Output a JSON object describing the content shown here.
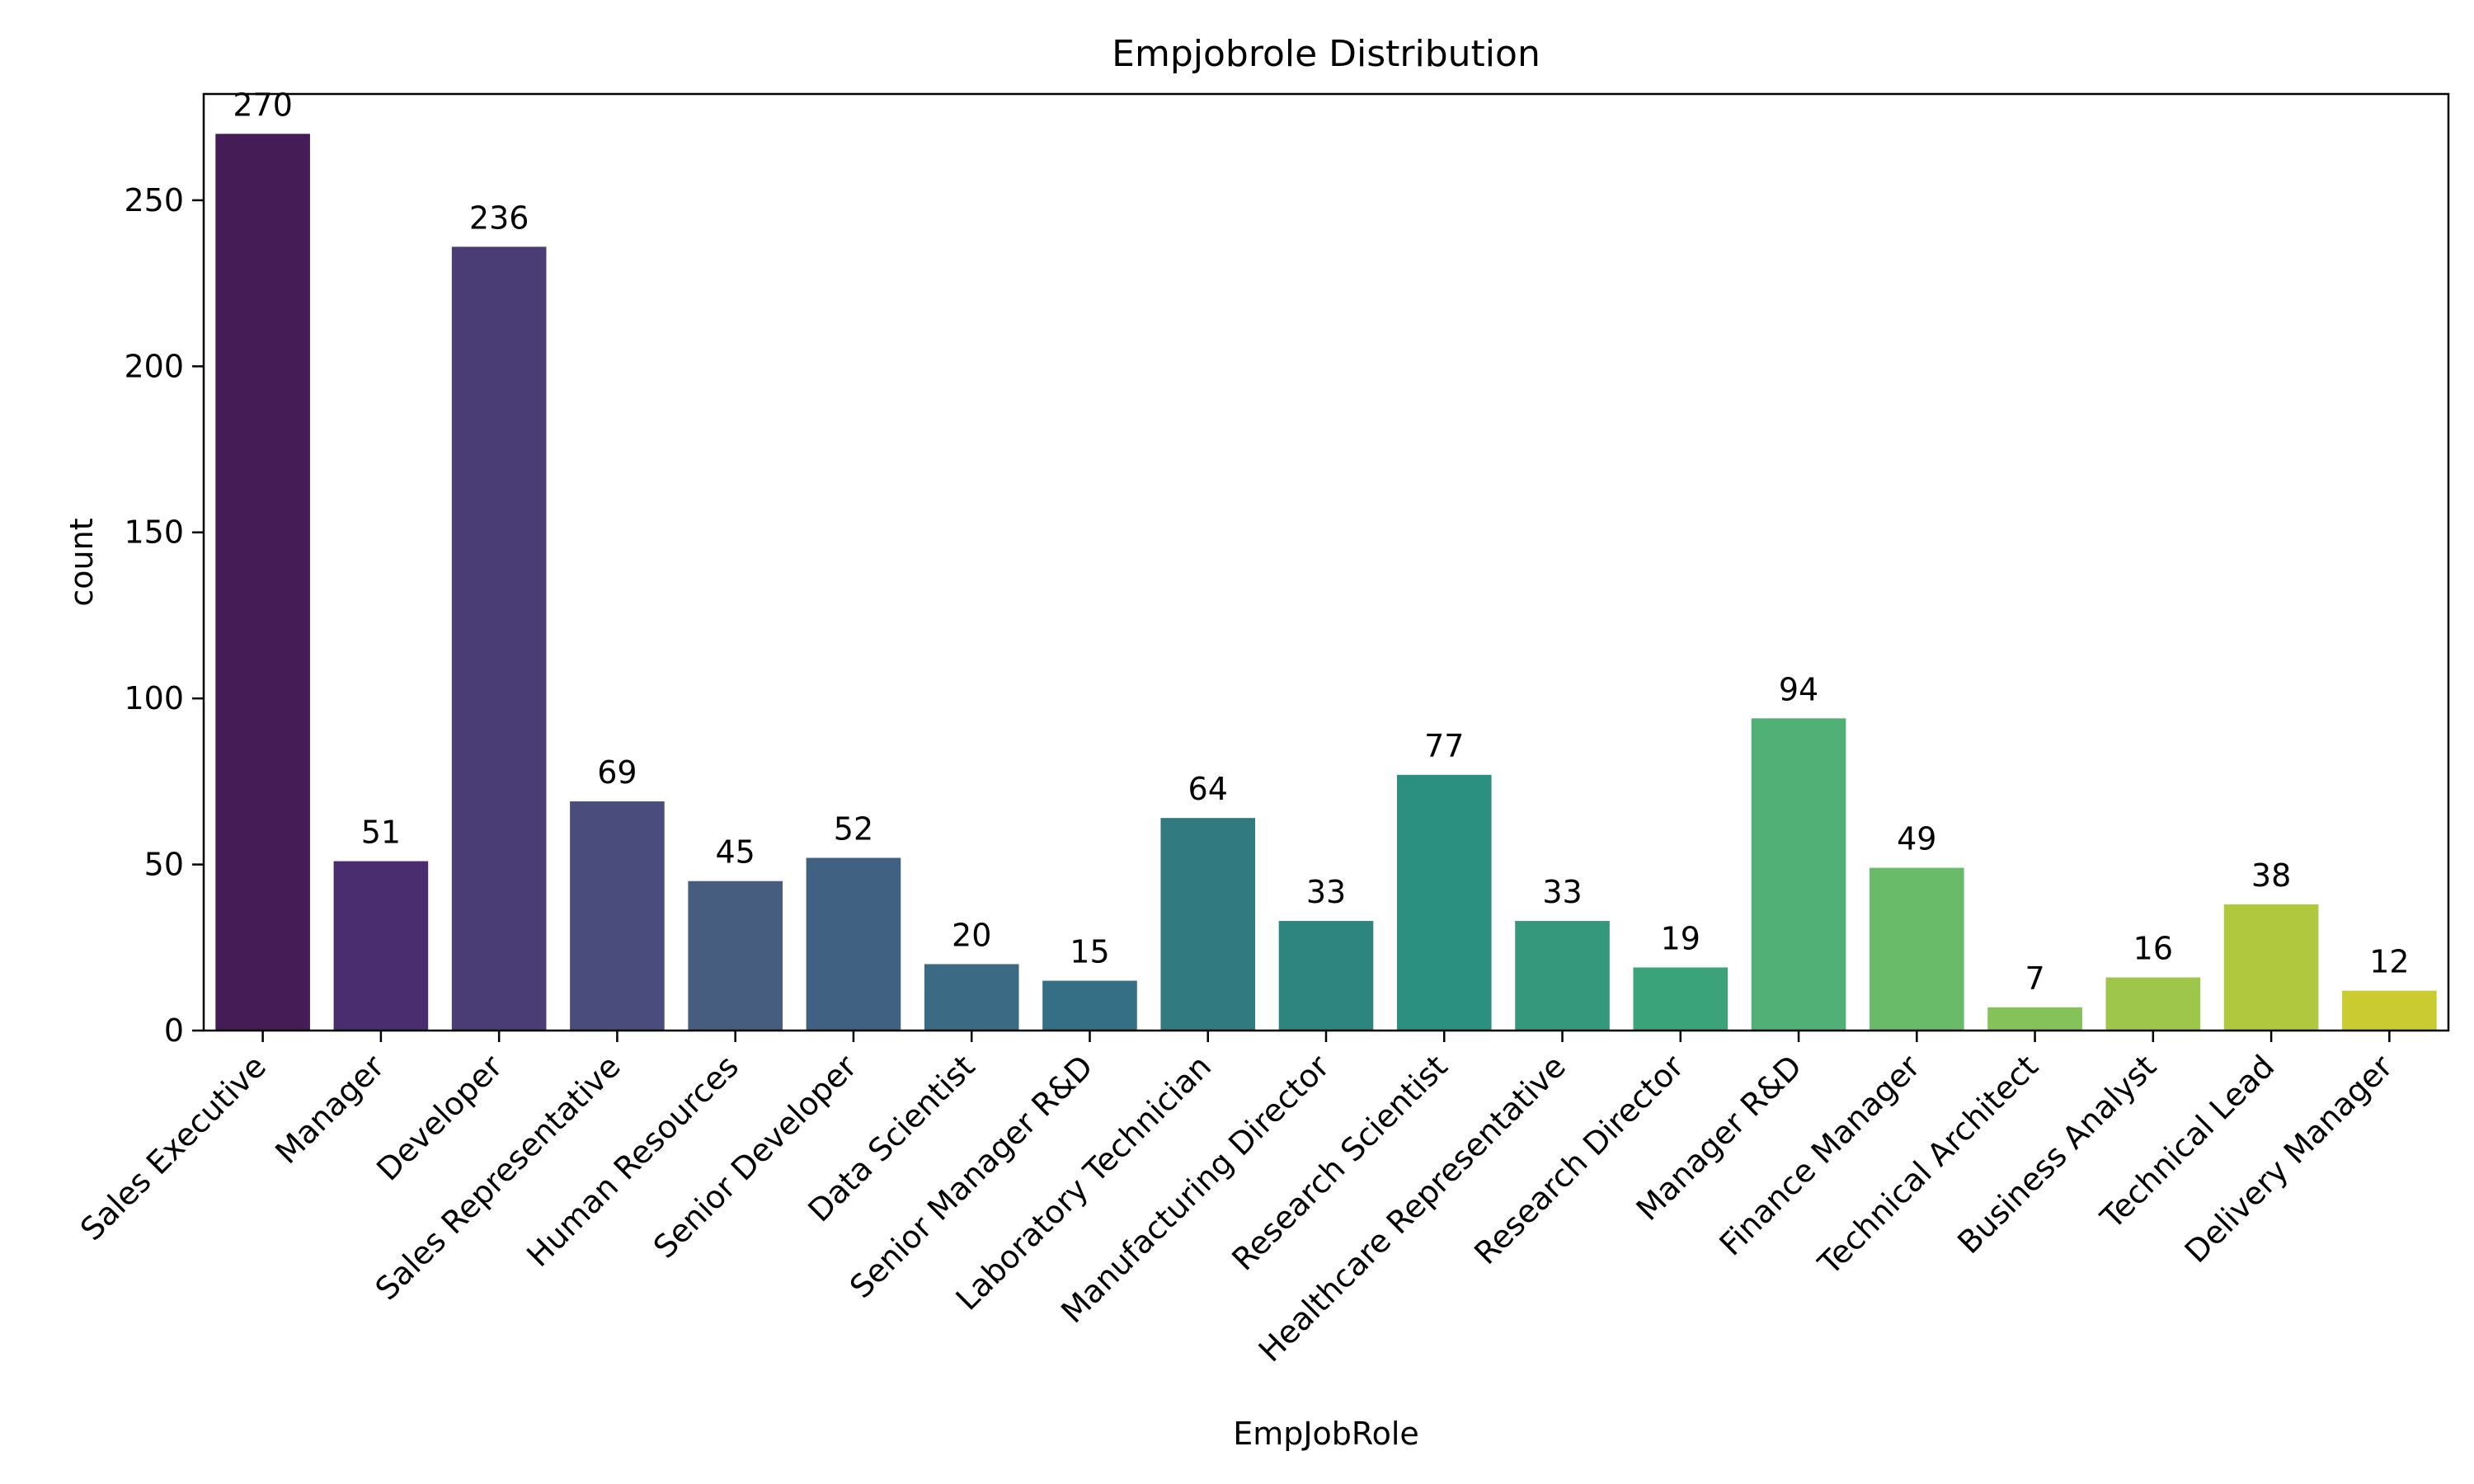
{
  "chart_data": {
    "type": "bar",
    "title": "Empjobrole Distribution",
    "xlabel": "EmpJobRole",
    "ylabel": "count",
    "ylim": [
      0,
      282
    ],
    "yticks": [
      0,
      50,
      100,
      150,
      200,
      250
    ],
    "grid": false,
    "legend": "none",
    "categories": [
      "Sales Executive",
      "Manager",
      "Developer",
      "Sales Representative",
      "Human Resources",
      "Senior Developer",
      "Data Scientist",
      "Senior Manager R&D",
      "Laboratory Technician",
      "Manufacturing Director",
      "Research Scientist",
      "Healthcare Representative",
      "Research Director",
      "Manager R&D",
      "Finance Manager",
      "Technical Architect",
      "Business Analyst",
      "Technical Lead",
      "Delivery Manager"
    ],
    "values": [
      270,
      51,
      236,
      69,
      45,
      52,
      20,
      15,
      64,
      33,
      77,
      33,
      19,
      94,
      49,
      7,
      16,
      38,
      12
    ],
    "colors": [
      "#461c56",
      "#4a2d6e",
      "#4a3d75",
      "#4a4d7b",
      "#465d80",
      "#416182",
      "#3a6a84",
      "#356f85",
      "#307a80",
      "#2e8580",
      "#2b9080",
      "#35987d",
      "#3aa37a",
      "#50b075",
      "#69bb6a",
      "#85c259",
      "#9ec64b",
      "#b0c83d",
      "#c9cb31"
    ]
  }
}
